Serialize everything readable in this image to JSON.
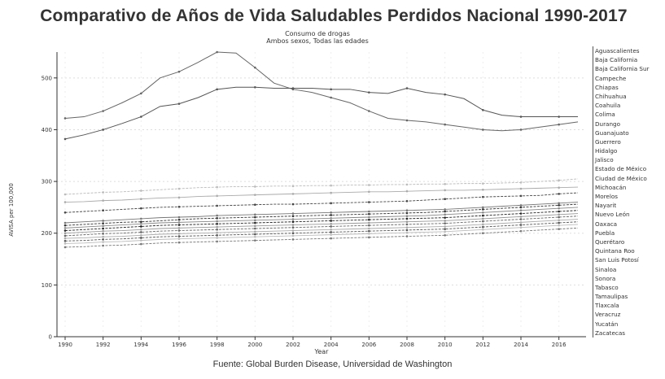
{
  "chart_data": {
    "type": "line",
    "title": "Comparativo de Años de Vida Saludables Perdidos Nacional 1990-2017",
    "subtitle": "Consumo de drogas",
    "subtitle2": "Ambos sexos, Todas las edades",
    "xlabel": "Year",
    "ylabel": "AVISA per 100,000",
    "source": "Fuente: Global Burden Disease, Universidad de Washington",
    "xlim": [
      1990,
      2017
    ],
    "ylim": [
      0,
      550
    ],
    "x_ticks": [
      "1990",
      "1992",
      "1994",
      "1996",
      "1998",
      "2000",
      "2002",
      "2004",
      "2006",
      "2008",
      "2010",
      "2012",
      "2014",
      "2016"
    ],
    "y_ticks": [
      "0",
      "100",
      "200",
      "300",
      "400",
      "500"
    ],
    "x": [
      1990,
      1991,
      1992,
      1993,
      1994,
      1995,
      1996,
      1997,
      1998,
      1999,
      2000,
      2001,
      2002,
      2003,
      2004,
      2005,
      2006,
      2007,
      2008,
      2009,
      2010,
      2011,
      2012,
      2013,
      2014,
      2015,
      2016,
      2017
    ],
    "legend_position": "right",
    "grid": true,
    "series": [
      {
        "name": "Chihuahua",
        "color": "#666666",
        "values": [
          422,
          425,
          436,
          452,
          470,
          500,
          512,
          530,
          550,
          548,
          520,
          490,
          478,
          472,
          462,
          452,
          436,
          422,
          418,
          415,
          410,
          405,
          400,
          398,
          400,
          405,
          410,
          415
        ]
      },
      {
        "name": "Baja California",
        "color": "#555555",
        "values": [
          382,
          390,
          400,
          412,
          425,
          445,
          450,
          462,
          478,
          482,
          482,
          480,
          480,
          480,
          478,
          478,
          472,
          470,
          480,
          472,
          468,
          460,
          438,
          428,
          425,
          425,
          425,
          425
        ]
      },
      {
        "name": "Colima",
        "color": "#bbbbbb",
        "values": [
          275,
          277,
          279,
          280,
          282,
          284,
          286,
          288,
          289,
          290,
          290,
          291,
          291,
          292,
          292,
          293,
          293,
          294,
          294,
          295,
          295,
          296,
          296,
          297,
          298,
          300,
          302,
          305
        ]
      },
      {
        "name": "Sonora",
        "color": "#aaaaaa",
        "values": [
          260,
          261,
          263,
          264,
          266,
          268,
          269,
          271,
          272,
          273,
          274,
          275,
          276,
          277,
          278,
          279,
          280,
          280,
          281,
          282,
          283,
          283,
          284,
          285,
          286,
          287,
          288,
          289
        ]
      },
      {
        "name": "Aguascalientes",
        "color": "#444444",
        "values": [
          240,
          242,
          244,
          246,
          248,
          250,
          251,
          252,
          253,
          254,
          255,
          256,
          256,
          257,
          258,
          259,
          260,
          261,
          262,
          264,
          266,
          268,
          270,
          271,
          272,
          273,
          276,
          278
        ]
      },
      {
        "name": "Durango",
        "color": "#777777",
        "values": [
          220,
          222,
          224,
          226,
          228,
          230,
          231,
          232,
          234,
          235,
          236,
          237,
          238,
          239,
          240,
          241,
          242,
          243,
          244,
          245,
          246,
          248,
          250,
          252,
          254,
          256,
          258,
          260
        ]
      },
      {
        "name": "Jalisco",
        "color": "#333333",
        "values": [
          215,
          217,
          219,
          221,
          222,
          224,
          226,
          228,
          229,
          230,
          231,
          232,
          233,
          234,
          235,
          236,
          237,
          238,
          239,
          240,
          242,
          244,
          246,
          248,
          250,
          252,
          254,
          256
        ]
      },
      {
        "name": "Baja California Sur",
        "color": "#888888",
        "values": [
          210,
          212,
          214,
          216,
          218,
          220,
          221,
          222,
          223,
          224,
          225,
          226,
          227,
          228,
          229,
          230,
          231,
          232,
          233,
          234,
          236,
          238,
          240,
          242,
          244,
          246,
          248,
          250
        ]
      },
      {
        "name": "Ciudad de México",
        "color": "#222222",
        "values": [
          205,
          207,
          209,
          211,
          213,
          215,
          216,
          217,
          218,
          219,
          220,
          221,
          222,
          223,
          224,
          225,
          226,
          227,
          228,
          229,
          230,
          232,
          234,
          236,
          238,
          240,
          242,
          244
        ]
      },
      {
        "name": "Nuevo León",
        "color": "#999999",
        "values": [
          200,
          202,
          204,
          205,
          207,
          209,
          210,
          211,
          212,
          213,
          214,
          215,
          216,
          217,
          218,
          219,
          220,
          221,
          222,
          223,
          224,
          226,
          228,
          230,
          232,
          234,
          236,
          238
        ]
      },
      {
        "name": "Tamaulipas",
        "color": "#666666",
        "values": [
          195,
          197,
          199,
          200,
          202,
          204,
          205,
          206,
          207,
          208,
          209,
          210,
          211,
          212,
          213,
          214,
          215,
          216,
          217,
          218,
          219,
          221,
          223,
          225,
          227,
          229,
          231,
          233
        ]
      },
      {
        "name": "Morelos",
        "color": "#aaaaaa",
        "values": [
          190,
          191,
          193,
          194,
          196,
          198,
          199,
          200,
          201,
          202,
          203,
          204,
          205,
          206,
          207,
          208,
          209,
          210,
          211,
          212,
          213,
          215,
          217,
          219,
          221,
          223,
          225,
          227
        ]
      },
      {
        "name": "Querétaro",
        "color": "#555555",
        "values": [
          185,
          186,
          188,
          189,
          191,
          193,
          194,
          195,
          196,
          197,
          198,
          199,
          200,
          201,
          202,
          203,
          204,
          205,
          206,
          207,
          208,
          210,
          212,
          214,
          216,
          218,
          220,
          222
        ]
      },
      {
        "name": "Guanajuato",
        "color": "#bbbbbb",
        "values": [
          180,
          181,
          183,
          184,
          186,
          188,
          189,
          190,
          191,
          192,
          193,
          194,
          195,
          196,
          197,
          198,
          199,
          200,
          201,
          202,
          203,
          205,
          207,
          209,
          211,
          213,
          215,
          217
        ]
      },
      {
        "name": "Zacatecas",
        "color": "#777777",
        "values": [
          173,
          174,
          176,
          177,
          179,
          181,
          182,
          183,
          184,
          185,
          186,
          187,
          188,
          189,
          190,
          191,
          192,
          193,
          194,
          195,
          196,
          198,
          200,
          202,
          204,
          206,
          208,
          210
        ]
      }
    ],
    "legend_entries": [
      "Aguascalientes",
      "Baja California",
      "Baja California Sur",
      "Campeche",
      "Chiapas",
      "Chihuahua",
      "Coahuila",
      "Colima",
      "Durango",
      "Guanajuato",
      "Guerrero",
      "Hidalgo",
      "Jalisco",
      "Estado de México",
      "Ciudad de México",
      "Michoacán",
      "Morelos",
      "Nayarit",
      "Nuevo León",
      "Oaxaca",
      "Puebla",
      "Querétaro",
      "Quintana Roo",
      "San Luis Potosí",
      "Sinaloa",
      "Sonora",
      "Tabasco",
      "Tamaulipas",
      "Tlaxcala",
      "Veracruz",
      "Yucatán",
      "Zacatecas"
    ]
  }
}
